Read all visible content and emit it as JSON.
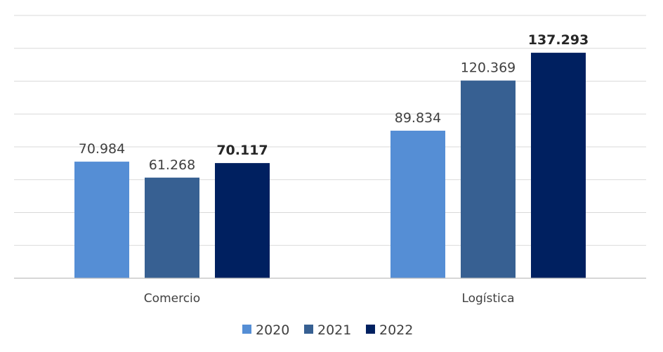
{
  "chart_data": {
    "type": "bar",
    "categories": [
      "Comercio",
      "Logística"
    ],
    "series": [
      {
        "name": "2020",
        "color": "#558ed5",
        "values": [
          70984,
          89834
        ],
        "labels": [
          "70.984",
          "89.834"
        ],
        "bold": false
      },
      {
        "name": "2021",
        "color": "#376092",
        "values": [
          61268,
          120369
        ],
        "labels": [
          "61.268",
          "120.369"
        ],
        "bold": false
      },
      {
        "name": "2022",
        "color": "#002060",
        "values": [
          70117,
          137293
        ],
        "labels": [
          "70.117",
          "137.293"
        ],
        "bold": true
      }
    ],
    "ylim": [
      0,
      160000
    ],
    "grid": true,
    "legend": "bottom-center",
    "title": "",
    "xlabel": "",
    "ylabel": ""
  }
}
